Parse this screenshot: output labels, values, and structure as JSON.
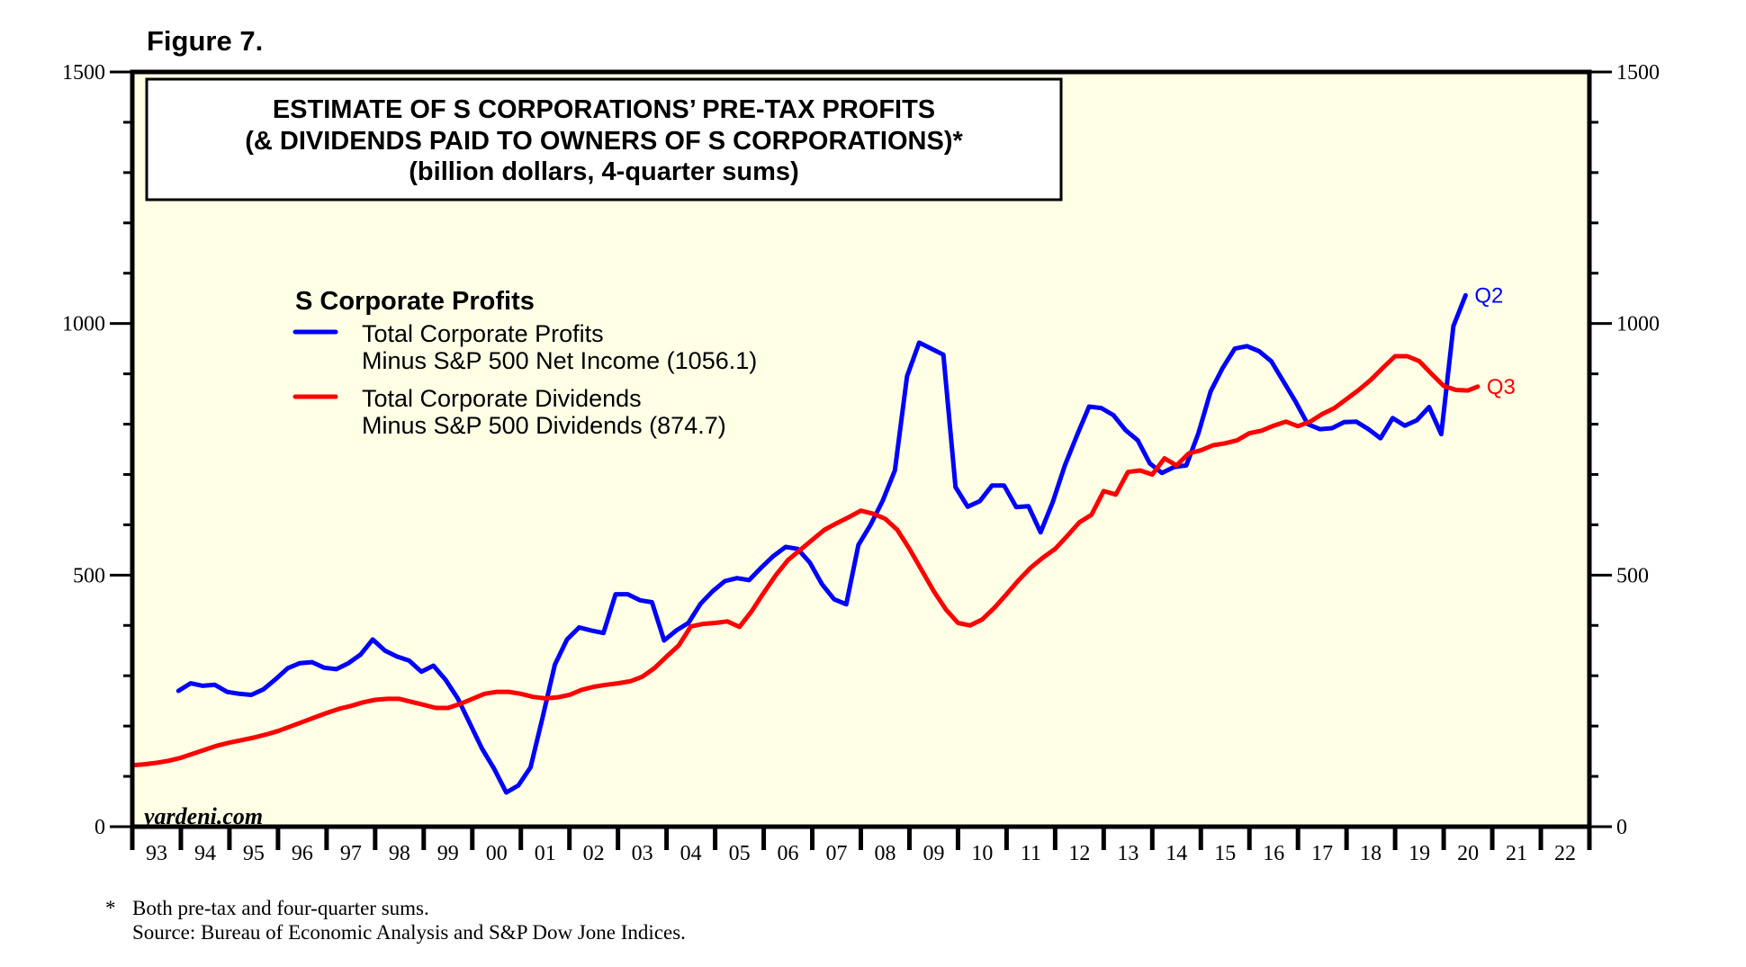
{
  "figure_label": "Figure 7.",
  "footnote": {
    "marker": "*",
    "line1": "Both pre-tax and four-quarter sums.",
    "line2": "Source: Bureau of Economic Analysis and S&P Dow Jone Indices."
  },
  "colors": {
    "plot_background": "#ffffe6",
    "profits": "#0000ff",
    "dividends": "#ff0000",
    "frame": "#000000"
  },
  "chart_data": {
    "type": "line",
    "title": [
      "ESTIMATE OF S CORPORATIONS’ PRE-TAX PROFITS",
      "(& DIVIDENDS PAID TO OWNERS OF S CORPORATIONS)*",
      "(billion dollars, 4-quarter sums)"
    ],
    "legend_title": "S Corporate Profits",
    "legend_placement": "upper-left",
    "watermark": "yardeni.com",
    "xlabel": "",
    "ylabel": "",
    "xlim": [
      1993,
      2023
    ],
    "ylim": [
      0,
      1500
    ],
    "y_ticks_major": [
      0,
      500,
      1000,
      1500
    ],
    "y_tick_labels": [
      "0",
      "500",
      "1000",
      "1500"
    ],
    "y_minor_step": 100,
    "x_tick_labels": [
      "93",
      "94",
      "95",
      "96",
      "97",
      "98",
      "99",
      "00",
      "01",
      "02",
      "03",
      "04",
      "05",
      "06",
      "07",
      "08",
      "09",
      "10",
      "11",
      "12",
      "13",
      "14",
      "15",
      "16",
      "17",
      "18",
      "19",
      "20",
      "21",
      "22"
    ],
    "grid": false,
    "series": [
      {
        "name": "Total Corporate Profits Minus S&P 500 Net Income",
        "legend_line1": "Total Corporate Profits",
        "legend_line2": "Minus S&P 500 Net Income (1056.1)",
        "end_label": "Q2",
        "last_value": 1056.1,
        "color": "#0000ff",
        "points": [
          [
            1993.95,
            270
          ],
          [
            1994.2,
            285
          ],
          [
            1994.45,
            280
          ],
          [
            1994.7,
            282
          ],
          [
            1994.95,
            268
          ],
          [
            1995.2,
            264
          ],
          [
            1995.45,
            262
          ],
          [
            1995.7,
            273
          ],
          [
            1995.95,
            293
          ],
          [
            1996.2,
            315
          ],
          [
            1996.45,
            325
          ],
          [
            1996.7,
            327
          ],
          [
            1996.95,
            316
          ],
          [
            1997.2,
            313
          ],
          [
            1997.45,
            325
          ],
          [
            1997.7,
            342
          ],
          [
            1997.95,
            372
          ],
          [
            1998.2,
            350
          ],
          [
            1998.45,
            338
          ],
          [
            1998.7,
            330
          ],
          [
            1998.95,
            308
          ],
          [
            1999.2,
            320
          ],
          [
            1999.45,
            292
          ],
          [
            1999.7,
            255
          ],
          [
            1999.95,
            205
          ],
          [
            2000.2,
            155
          ],
          [
            2000.45,
            115
          ],
          [
            2000.7,
            68
          ],
          [
            2000.95,
            82
          ],
          [
            2001.2,
            118
          ],
          [
            2001.45,
            218
          ],
          [
            2001.7,
            322
          ],
          [
            2001.95,
            372
          ],
          [
            2002.2,
            396
          ],
          [
            2002.45,
            390
          ],
          [
            2002.7,
            385
          ],
          [
            2002.95,
            462
          ],
          [
            2003.2,
            462
          ],
          [
            2003.45,
            450
          ],
          [
            2003.7,
            446
          ],
          [
            2003.95,
            370
          ],
          [
            2004.2,
            390
          ],
          [
            2004.45,
            405
          ],
          [
            2004.7,
            443
          ],
          [
            2004.95,
            468
          ],
          [
            2005.2,
            488
          ],
          [
            2005.45,
            494
          ],
          [
            2005.7,
            490
          ],
          [
            2005.95,
            515
          ],
          [
            2006.2,
            538
          ],
          [
            2006.45,
            556
          ],
          [
            2006.7,
            552
          ],
          [
            2006.95,
            525
          ],
          [
            2007.2,
            482
          ],
          [
            2007.45,
            452
          ],
          [
            2007.7,
            442
          ],
          [
            2007.95,
            560
          ],
          [
            2008.2,
            600
          ],
          [
            2008.45,
            648
          ],
          [
            2008.7,
            708
          ],
          [
            2008.95,
            895
          ],
          [
            2009.2,
            962
          ],
          [
            2009.45,
            950
          ],
          [
            2009.7,
            938
          ],
          [
            2009.95,
            675
          ],
          [
            2010.2,
            636
          ],
          [
            2010.45,
            647
          ],
          [
            2010.7,
            678
          ],
          [
            2010.95,
            678
          ],
          [
            2011.2,
            635
          ],
          [
            2011.45,
            637
          ],
          [
            2011.7,
            585
          ],
          [
            2011.95,
            645
          ],
          [
            2012.2,
            718
          ],
          [
            2012.45,
            778
          ],
          [
            2012.7,
            835
          ],
          [
            2012.95,
            832
          ],
          [
            2013.2,
            818
          ],
          [
            2013.45,
            788
          ],
          [
            2013.7,
            768
          ],
          [
            2013.95,
            722
          ],
          [
            2014.2,
            703
          ],
          [
            2014.45,
            715
          ],
          [
            2014.7,
            718
          ],
          [
            2014.95,
            782
          ],
          [
            2015.2,
            865
          ],
          [
            2015.45,
            912
          ],
          [
            2015.7,
            950
          ],
          [
            2015.95,
            955
          ],
          [
            2016.2,
            945
          ],
          [
            2016.45,
            925
          ],
          [
            2016.7,
            885
          ],
          [
            2016.95,
            845
          ],
          [
            2017.2,
            800
          ],
          [
            2017.45,
            790
          ],
          [
            2017.7,
            792
          ],
          [
            2017.95,
            804
          ],
          [
            2018.2,
            805
          ],
          [
            2018.45,
            790
          ],
          [
            2018.7,
            772
          ],
          [
            2018.95,
            812
          ],
          [
            2019.2,
            797
          ],
          [
            2019.45,
            808
          ],
          [
            2019.7,
            834
          ],
          [
            2019.95,
            780
          ],
          [
            2020.2,
            995
          ],
          [
            2020.45,
            1056.1
          ]
        ]
      },
      {
        "name": "Total Corporate Dividends Minus S&P 500 Dividends",
        "legend_line1": "Total Corporate Dividends",
        "legend_line2": "Minus S&P 500 Dividends (874.7)",
        "end_label": "Q3",
        "last_value": 874.7,
        "color": "#ff0000",
        "points": [
          [
            1993.0,
            122
          ],
          [
            1993.25,
            124
          ],
          [
            1993.5,
            127
          ],
          [
            1993.75,
            131
          ],
          [
            1994.0,
            137
          ],
          [
            1994.25,
            145
          ],
          [
            1994.5,
            153
          ],
          [
            1994.75,
            161
          ],
          [
            1995.0,
            167
          ],
          [
            1995.25,
            172
          ],
          [
            1995.5,
            177
          ],
          [
            1995.75,
            183
          ],
          [
            1996.0,
            190
          ],
          [
            1996.25,
            199
          ],
          [
            1996.5,
            208
          ],
          [
            1996.75,
            217
          ],
          [
            1997.0,
            226
          ],
          [
            1997.25,
            234
          ],
          [
            1997.5,
            240
          ],
          [
            1997.75,
            247
          ],
          [
            1998.0,
            252
          ],
          [
            1998.25,
            254
          ],
          [
            1998.5,
            254
          ],
          [
            1998.75,
            248
          ],
          [
            1999.0,
            242
          ],
          [
            1999.25,
            236
          ],
          [
            1999.5,
            236
          ],
          [
            1999.75,
            244
          ],
          [
            2000.0,
            254
          ],
          [
            2000.25,
            264
          ],
          [
            2000.5,
            268
          ],
          [
            2000.75,
            268
          ],
          [
            2001.0,
            264
          ],
          [
            2001.25,
            258
          ],
          [
            2001.5,
            255
          ],
          [
            2001.75,
            257
          ],
          [
            2002.0,
            262
          ],
          [
            2002.25,
            272
          ],
          [
            2002.5,
            278
          ],
          [
            2002.75,
            282
          ],
          [
            2003.0,
            285
          ],
          [
            2003.25,
            289
          ],
          [
            2003.5,
            298
          ],
          [
            2003.75,
            315
          ],
          [
            2004.0,
            338
          ],
          [
            2004.25,
            360
          ],
          [
            2004.5,
            398
          ],
          [
            2004.75,
            403
          ],
          [
            2005.0,
            405
          ],
          [
            2005.25,
            408
          ],
          [
            2005.5,
            397
          ],
          [
            2005.75,
            428
          ],
          [
            2006.0,
            465
          ],
          [
            2006.25,
            500
          ],
          [
            2006.5,
            530
          ],
          [
            2006.75,
            550
          ],
          [
            2007.0,
            570
          ],
          [
            2007.25,
            590
          ],
          [
            2007.5,
            603
          ],
          [
            2007.75,
            615
          ],
          [
            2008.0,
            628
          ],
          [
            2008.25,
            622
          ],
          [
            2008.5,
            612
          ],
          [
            2008.75,
            590
          ],
          [
            2009.0,
            552
          ],
          [
            2009.25,
            510
          ],
          [
            2009.5,
            468
          ],
          [
            2009.75,
            432
          ],
          [
            2010.0,
            405
          ],
          [
            2010.25,
            400
          ],
          [
            2010.5,
            412
          ],
          [
            2010.75,
            435
          ],
          [
            2011.0,
            462
          ],
          [
            2011.25,
            490
          ],
          [
            2011.5,
            515
          ],
          [
            2011.75,
            535
          ],
          [
            2012.0,
            552
          ],
          [
            2012.25,
            578
          ],
          [
            2012.5,
            605
          ],
          [
            2012.75,
            620
          ],
          [
            2013.0,
            667
          ],
          [
            2013.25,
            660
          ],
          [
            2013.5,
            705
          ],
          [
            2013.75,
            708
          ],
          [
            2014.0,
            700
          ],
          [
            2014.25,
            732
          ],
          [
            2014.5,
            718
          ],
          [
            2014.75,
            742
          ],
          [
            2015.0,
            748
          ],
          [
            2015.25,
            758
          ],
          [
            2015.5,
            762
          ],
          [
            2015.75,
            768
          ],
          [
            2016.0,
            782
          ],
          [
            2016.25,
            787
          ],
          [
            2016.5,
            797
          ],
          [
            2016.75,
            805
          ],
          [
            2017.0,
            796
          ],
          [
            2017.25,
            805
          ],
          [
            2017.5,
            820
          ],
          [
            2017.75,
            832
          ],
          [
            2018.0,
            850
          ],
          [
            2018.25,
            868
          ],
          [
            2018.5,
            888
          ],
          [
            2018.75,
            912
          ],
          [
            2019.0,
            935
          ],
          [
            2019.25,
            935
          ],
          [
            2019.5,
            925
          ],
          [
            2019.75,
            900
          ],
          [
            2020.0,
            876
          ],
          [
            2020.25,
            868
          ],
          [
            2020.5,
            867
          ],
          [
            2020.7,
            874.7
          ]
        ]
      }
    ]
  }
}
